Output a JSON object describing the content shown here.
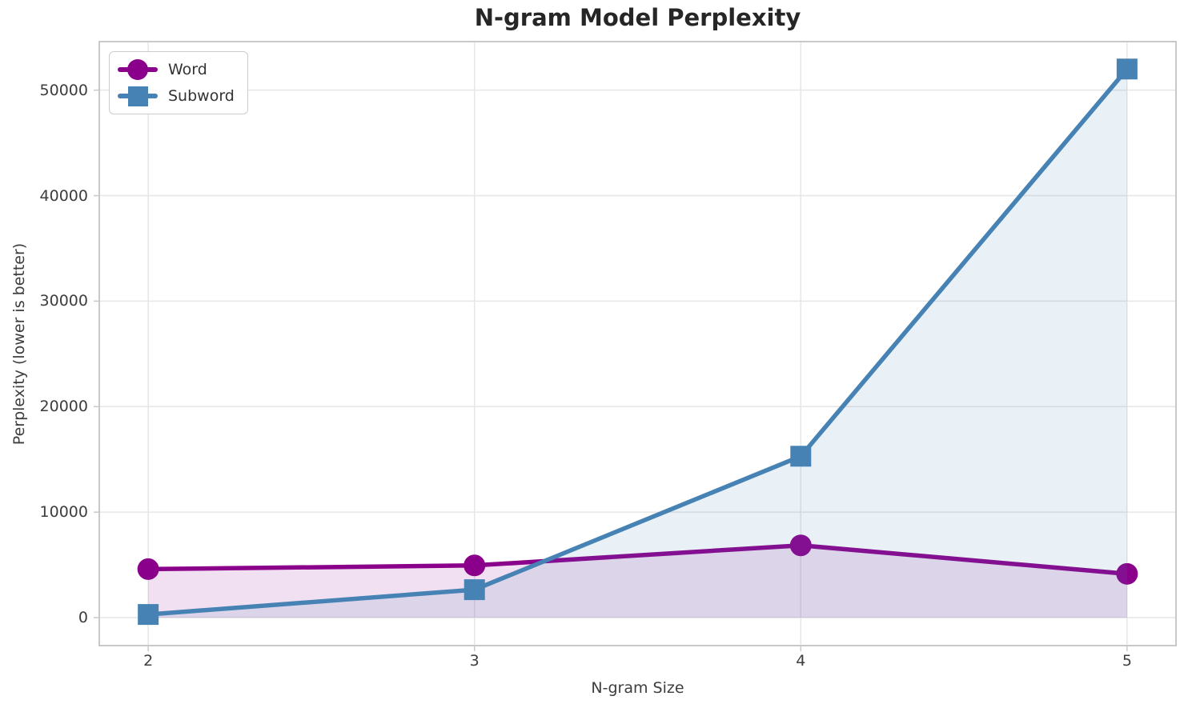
{
  "chart_data": {
    "type": "line",
    "title": "N-gram Model Perplexity",
    "xlabel": "N-gram Size",
    "ylabel": "Perplexity (lower is better)",
    "x": [
      2,
      3,
      4,
      5
    ],
    "xtick_labels": [
      "2",
      "3",
      "4",
      "5"
    ],
    "yticks": [
      0,
      10000,
      20000,
      30000,
      40000,
      50000
    ],
    "ytick_labels": [
      "0",
      "10000",
      "20000",
      "30000",
      "40000",
      "50000"
    ],
    "xlim": [
      1.85,
      5.15
    ],
    "ylim": [
      -2650,
      54600
    ],
    "grid": true,
    "legend_position": "upper-left",
    "grid_color": "#e6e6e6",
    "spine_color": "#c9c9c9",
    "series": [
      {
        "name": "Word",
        "marker": "circle",
        "color": "#8B008B",
        "fill_color": "rgba(139,0,139,0.12)",
        "values": [
          4600,
          4950,
          6850,
          4150
        ]
      },
      {
        "name": "Subword",
        "marker": "square",
        "color": "#4682B4",
        "fill_color": "rgba(70,130,180,0.12)",
        "values": [
          300,
          2650,
          15300,
          52000
        ]
      }
    ]
  }
}
